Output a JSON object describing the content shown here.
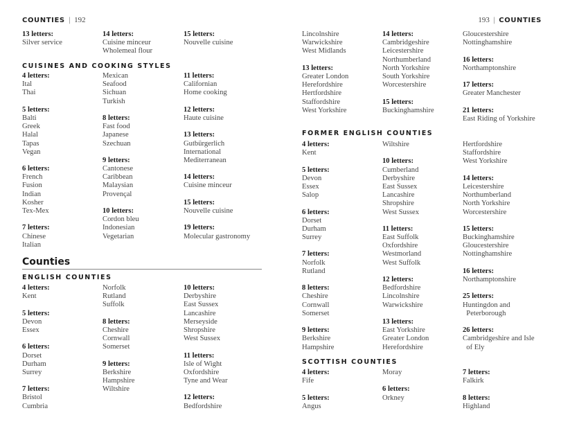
{
  "left_page": {
    "header": {
      "running_title": "COUNTIES",
      "page_number": "192"
    },
    "blocks": [
      {
        "heading": null,
        "columns": [
          [
            {
              "label": "13 letters:",
              "items": [
                "Silver service"
              ]
            }
          ],
          [
            {
              "label": "14 letters:",
              "items": [
                "Cuisine minceur",
                "Wholemeal flour"
              ]
            }
          ],
          [
            {
              "label": "15 letters:",
              "items": [
                "Nouvelle cuisine"
              ]
            }
          ]
        ]
      },
      {
        "heading": "CUISINES AND COOKING STYLES",
        "columns": [
          [
            {
              "label": "4 letters:",
              "items": [
                "Ital",
                "Thai"
              ]
            },
            {
              "label": "5 letters:",
              "items": [
                "Balti",
                "Greek",
                "Halal",
                "Tapas",
                "Vegan"
              ]
            },
            {
              "label": "6 letters:",
              "items": [
                "French",
                "Fusion",
                "Indian",
                "Kosher",
                "Tex-Mex"
              ]
            },
            {
              "label": "7 letters:",
              "items": [
                "Chinese",
                "Italian"
              ]
            }
          ],
          [
            {
              "label": null,
              "items": [
                "Mexican",
                "Seafood",
                "Sichuan",
                "Turkish"
              ]
            },
            {
              "label": "8 letters:",
              "items": [
                "Fast food",
                "Japanese",
                "Szechuan"
              ]
            },
            {
              "label": "9 letters:",
              "items": [
                "Cantonese",
                "Caribbean",
                "Malaysian",
                "Provençal"
              ]
            },
            {
              "label": "10 letters:",
              "items": [
                "Cordon bleu",
                "Indonesian",
                "Vegetarian"
              ]
            }
          ],
          [
            {
              "label": "11 letters:",
              "items": [
                "Californian",
                "Home cooking"
              ]
            },
            {
              "label": "12 letters:",
              "items": [
                "Haute cuisine"
              ]
            },
            {
              "label": "13 letters:",
              "items": [
                "Gutbürgerlich",
                "International",
                "Mediterranean"
              ]
            },
            {
              "label": "14 letters:",
              "items": [
                "Cuisine minceur"
              ]
            },
            {
              "label": "15 letters:",
              "items": [
                "Nouvelle cuisine"
              ]
            },
            {
              "label": "19 letters:",
              "items": [
                "Molecular gastronomy"
              ]
            }
          ]
        ]
      },
      {
        "title": "Counties",
        "heading": "ENGLISH COUNTIES",
        "columns": [
          [
            {
              "label": "4 letters:",
              "items": [
                "Kent"
              ]
            },
            {
              "label": "5 letters:",
              "items": [
                "Devon",
                "Essex"
              ]
            },
            {
              "label": "6 letters:",
              "items": [
                "Dorset",
                "Durham",
                "Surrey"
              ]
            },
            {
              "label": "7 letters:",
              "items": [
                "Bristol",
                "Cumbria"
              ]
            }
          ],
          [
            {
              "label": null,
              "items": [
                "Norfolk",
                "Rutland",
                "Suffolk"
              ]
            },
            {
              "label": "8 letters:",
              "items": [
                "Cheshire",
                "Cornwall",
                "Somerset"
              ]
            },
            {
              "label": "9 letters:",
              "items": [
                "Berkshire",
                "Hampshire",
                "Wiltshire"
              ]
            }
          ],
          [
            {
              "label": "10 letters:",
              "items": [
                "Derbyshire",
                "East Sussex",
                "Lancashire",
                "Merseyside",
                "Shropshire",
                "West Sussex"
              ]
            },
            {
              "label": "11 letters:",
              "items": [
                "Isle of Wight",
                "Oxfordshire",
                "Tyne and Wear"
              ]
            },
            {
              "label": "12 letters:",
              "items": [
                "Bedfordshire"
              ]
            }
          ]
        ]
      }
    ]
  },
  "right_page": {
    "header": {
      "running_title": "COUNTIES",
      "page_number": "193"
    },
    "blocks": [
      {
        "heading": null,
        "columns": [
          [
            {
              "label": null,
              "items": [
                "Lincolnshire",
                "Warwickshire",
                "West Midlands"
              ]
            },
            {
              "label": "13 letters:",
              "items": [
                "Greater London",
                "Herefordshire",
                "Hertfordshire",
                "Staffordshire",
                "West Yorkshire"
              ]
            }
          ],
          [
            {
              "label": "14 letters:",
              "items": [
                "Cambridgeshire",
                "Leicestershire",
                "Northumberland",
                "North Yorkshire",
                "South Yorkshire",
                "Worcestershire"
              ]
            },
            {
              "label": "15 letters:",
              "items": [
                "Buckinghamshire"
              ]
            }
          ],
          [
            {
              "label": null,
              "items": [
                "Gloucestershire",
                "Nottinghamshire"
              ]
            },
            {
              "label": "16 letters:",
              "items": [
                "Northamptonshire"
              ]
            },
            {
              "label": "17 letters:",
              "items": [
                "Greater Manchester"
              ]
            },
            {
              "label": "21 letters:",
              "items": [
                "East Riding of Yorkshire"
              ]
            }
          ]
        ]
      },
      {
        "heading": "FORMER ENGLISH COUNTIES",
        "columns": [
          [
            {
              "label": "4 letters:",
              "items": [
                "Kent"
              ]
            },
            {
              "label": "5 letters:",
              "items": [
                "Devon",
                "Essex",
                "Salop"
              ]
            },
            {
              "label": "6 letters:",
              "items": [
                "Dorset",
                "Durham",
                "Surrey"
              ]
            },
            {
              "label": "7 letters:",
              "items": [
                "Norfolk",
                "Rutland"
              ]
            },
            {
              "label": "8 letters:",
              "items": [
                "Cheshire",
                "Cornwall",
                "Somerset"
              ]
            },
            {
              "label": "9 letters:",
              "items": [
                "Berkshire",
                "Hampshire"
              ]
            }
          ],
          [
            {
              "label": null,
              "items": [
                "Wiltshire"
              ]
            },
            {
              "label": "10 letters:",
              "items": [
                "Cumberland",
                "Derbyshire",
                "East Sussex",
                "Lancashire",
                "Shropshire",
                "West Sussex"
              ]
            },
            {
              "label": "11 letters:",
              "items": [
                "East Suffolk",
                "Oxfordshire",
                "Westmorland",
                "West Suffolk"
              ]
            },
            {
              "label": "12 letters:",
              "items": [
                "Bedfordshire",
                "Lincolnshire",
                "Warwickshire"
              ]
            },
            {
              "label": "13 letters:",
              "items": [
                "East Yorkshire",
                "Greater London",
                "Herefordshire"
              ]
            }
          ],
          [
            {
              "label": null,
              "items": [
                "Hertfordshire",
                "Staffordshire",
                "West Yorkshire"
              ]
            },
            {
              "label": "14 letters:",
              "items": [
                "Leicestershire",
                "Northumberland",
                "North Yorkshire",
                "Worcestershire"
              ]
            },
            {
              "label": "15 letters:",
              "items": [
                "Buckinghamshire",
                "Gloucestershire",
                "Nottinghamshire"
              ]
            },
            {
              "label": "16 letters:",
              "items": [
                "Northamptonshire"
              ]
            },
            {
              "label": "25 letters:",
              "items": [
                "Huntingdon and",
                "  Peterborough"
              ]
            },
            {
              "label": "26 letters:",
              "items": [
                "Cambridgeshire and Isle",
                "  of Ely"
              ]
            }
          ]
        ]
      },
      {
        "heading": "SCOTTISH COUNTIES",
        "columns": [
          [
            {
              "label": "4 letters:",
              "items": [
                "Fife"
              ]
            },
            {
              "label": "5 letters:",
              "items": [
                "Angus"
              ]
            }
          ],
          [
            {
              "label": null,
              "items": [
                "Moray"
              ]
            },
            {
              "label": "6 letters:",
              "items": [
                "Orkney"
              ]
            }
          ],
          [
            {
              "label": "7 letters:",
              "items": [
                "Falkirk"
              ]
            },
            {
              "label": "8 letters:",
              "items": [
                "Highland"
              ]
            }
          ]
        ]
      }
    ]
  }
}
